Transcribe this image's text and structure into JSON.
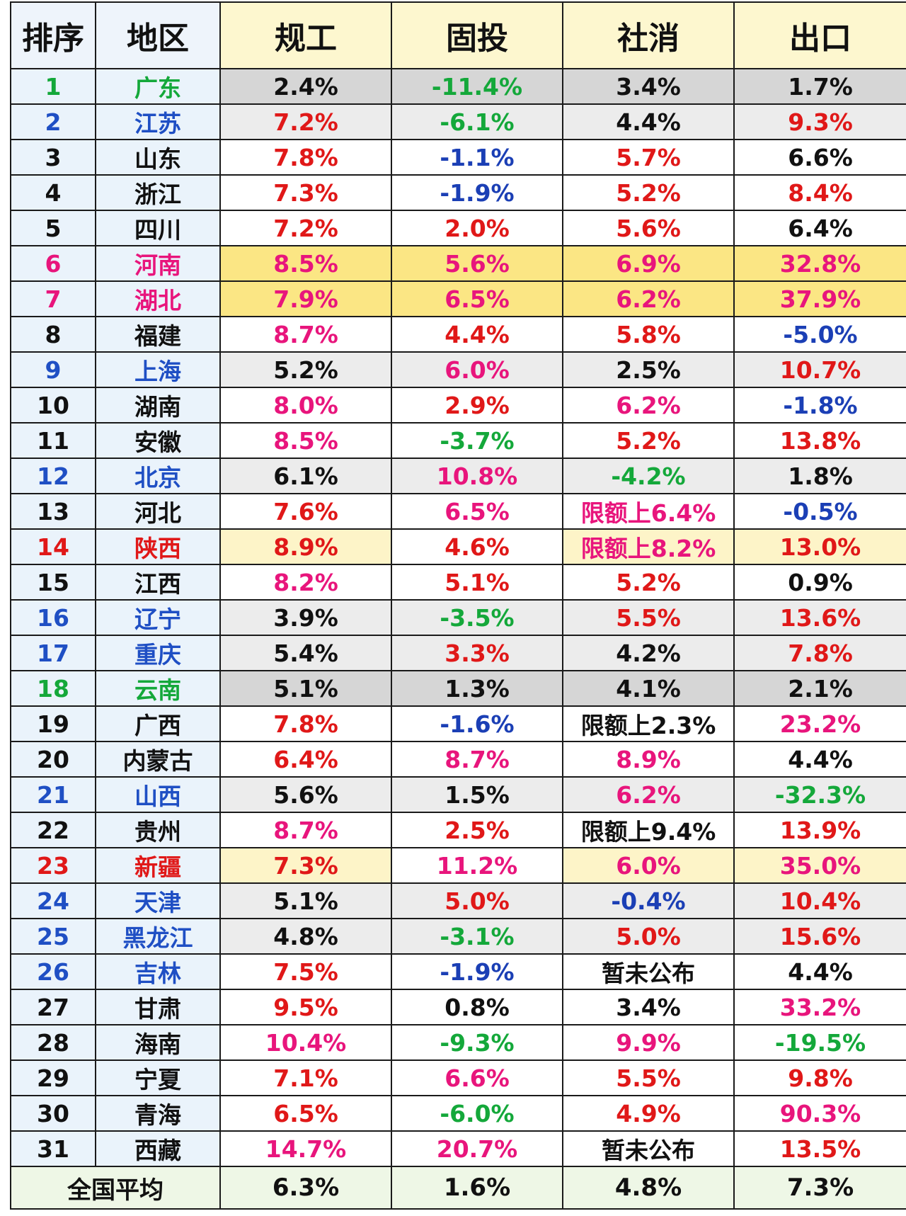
{
  "headers": [
    "排序",
    "地区",
    "规工",
    "固投",
    "社消",
    "出口"
  ],
  "rows": [
    {
      "rank": "1",
      "region": "广东",
      "gy": "2.4%",
      "gt": "-11.4%",
      "sx": "3.4%",
      "ck": "1.7%"
    },
    {
      "rank": "2",
      "region": "江苏",
      "gy": "7.2%",
      "gt": "-6.1%",
      "sx": "4.4%",
      "ck": "9.3%"
    },
    {
      "rank": "3",
      "region": "山东",
      "gy": "7.8%",
      "gt": "-1.1%",
      "sx": "5.7%",
      "ck": "6.6%"
    },
    {
      "rank": "4",
      "region": "浙江",
      "gy": "7.3%",
      "gt": "-1.9%",
      "sx": "5.2%",
      "ck": "8.4%"
    },
    {
      "rank": "5",
      "region": "四川",
      "gy": "7.2%",
      "gt": "2.0%",
      "sx": "5.6%",
      "ck": "6.4%"
    },
    {
      "rank": "6",
      "region": "河南",
      "gy": "8.5%",
      "gt": "5.6%",
      "sx": "6.9%",
      "ck": "32.8%"
    },
    {
      "rank": "7",
      "region": "湖北",
      "gy": "7.9%",
      "gt": "6.5%",
      "sx": "6.2%",
      "ck": "37.9%"
    },
    {
      "rank": "8",
      "region": "福建",
      "gy": "8.7%",
      "gt": "4.4%",
      "sx": "5.8%",
      "ck": "-5.0%"
    },
    {
      "rank": "9",
      "region": "上海",
      "gy": "5.2%",
      "gt": "6.0%",
      "sx": "2.5%",
      "ck": "10.7%"
    },
    {
      "rank": "10",
      "region": "湖南",
      "gy": "8.0%",
      "gt": "2.9%",
      "sx": "6.2%",
      "ck": "-1.8%"
    },
    {
      "rank": "11",
      "region": "安徽",
      "gy": "8.5%",
      "gt": "-3.7%",
      "sx": "5.2%",
      "ck": "13.8%"
    },
    {
      "rank": "12",
      "region": "北京",
      "gy": "6.1%",
      "gt": "10.8%",
      "sx": "-4.2%",
      "ck": "1.8%"
    },
    {
      "rank": "13",
      "region": "河北",
      "gy": "7.6%",
      "gt": "6.5%",
      "sx": "限额上6.4%",
      "ck": "-0.5%"
    },
    {
      "rank": "14",
      "region": "陕西",
      "gy": "8.9%",
      "gt": "4.6%",
      "sx": "限额上8.2%",
      "ck": "13.0%"
    },
    {
      "rank": "15",
      "region": "江西",
      "gy": "8.2%",
      "gt": "5.1%",
      "sx": "5.2%",
      "ck": "0.9%"
    },
    {
      "rank": "16",
      "region": "辽宁",
      "gy": "3.9%",
      "gt": "-3.5%",
      "sx": "5.5%",
      "ck": "13.6%"
    },
    {
      "rank": "17",
      "region": "重庆",
      "gy": "5.4%",
      "gt": "3.3%",
      "sx": "4.2%",
      "ck": "7.8%"
    },
    {
      "rank": "18",
      "region": "云南",
      "gy": "5.1%",
      "gt": "1.3%",
      "sx": "4.1%",
      "ck": "2.1%"
    },
    {
      "rank": "19",
      "region": "广西",
      "gy": "7.8%",
      "gt": "-1.6%",
      "sx": "限额上2.3%",
      "ck": "23.2%"
    },
    {
      "rank": "20",
      "region": "内蒙古",
      "gy": "6.4%",
      "gt": "8.7%",
      "sx": "8.9%",
      "ck": "4.4%"
    },
    {
      "rank": "21",
      "region": "山西",
      "gy": "5.6%",
      "gt": "1.5%",
      "sx": "6.2%",
      "ck": "-32.3%"
    },
    {
      "rank": "22",
      "region": "贵州",
      "gy": "8.7%",
      "gt": "2.5%",
      "sx": "限额上9.4%",
      "ck": "13.9%"
    },
    {
      "rank": "23",
      "region": "新疆",
      "gy": "7.3%",
      "gt": "11.2%",
      "sx": "6.0%",
      "ck": "35.0%"
    },
    {
      "rank": "24",
      "region": "天津",
      "gy": "5.1%",
      "gt": "5.0%",
      "sx": "-0.4%",
      "ck": "10.4%"
    },
    {
      "rank": "25",
      "region": "黑龙江",
      "gy": "4.8%",
      "gt": "-3.1%",
      "sx": "5.0%",
      "ck": "15.6%"
    },
    {
      "rank": "26",
      "region": "吉林",
      "gy": "7.5%",
      "gt": "-1.9%",
      "sx": "暂未公布",
      "ck": "4.4%"
    },
    {
      "rank": "27",
      "region": "甘肃",
      "gy": "9.5%",
      "gt": "0.8%",
      "sx": "3.4%",
      "ck": "33.2%"
    },
    {
      "rank": "28",
      "region": "海南",
      "gy": "10.4%",
      "gt": "-9.3%",
      "sx": "9.9%",
      "ck": "-19.5%"
    },
    {
      "rank": "29",
      "region": "宁夏",
      "gy": "7.1%",
      "gt": "6.6%",
      "sx": "5.5%",
      "ck": "9.8%"
    },
    {
      "rank": "30",
      "region": "青海",
      "gy": "6.5%",
      "gt": "-6.0%",
      "sx": "4.9%",
      "ck": "90.3%"
    },
    {
      "rank": "31",
      "region": "西藏",
      "gy": "14.7%",
      "gt": "20.7%",
      "sx": "暂未公布",
      "ck": "13.5%"
    }
  ],
  "footer": {
    "label": "全国平均",
    "gy": "6.3%",
    "gt": "1.6%",
    "sx": "4.8%",
    "ck": "7.3%"
  },
  "colors": {
    "red": "#e01818",
    "magenta": "#e8157c",
    "green": "#14a83a",
    "blue": "#1b3fb5",
    "black": "#111111",
    "header_bg": "#fdf7cf",
    "highlight_yellow": "#fbe684",
    "highlight_gray": "#d6d6d6"
  }
}
